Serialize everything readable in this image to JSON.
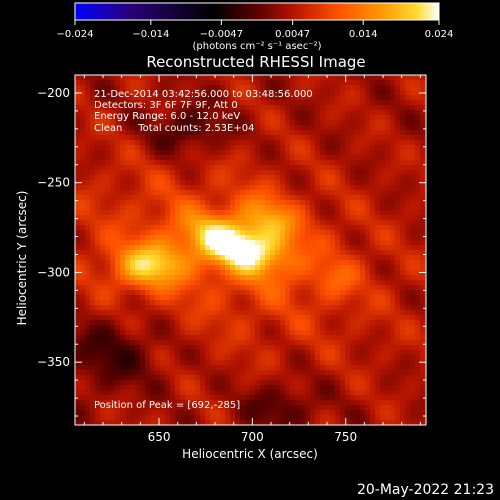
{
  "chart_data": {
    "type": "heatmap",
    "title": "Reconstructed RHESSI Image",
    "xlabel": "Heliocentric X (arcsec)",
    "ylabel": "Heliocentric Y (arcsec)",
    "xlim": [
      605,
      793
    ],
    "ylim": [
      -385,
      -190
    ],
    "xticks": [
      650,
      700,
      750
    ],
    "yticks": [
      -200,
      -250,
      -300,
      -350
    ],
    "ytick_labels": [
      "−200",
      "−250",
      "−300",
      "−350"
    ],
    "colorbar": {
      "min": -0.024,
      "max": 0.024,
      "ticks": [
        -0.024,
        -0.014,
        -0.0047,
        0.0047,
        0.014,
        0.024
      ],
      "tick_labels": [
        "−0.024",
        "−0.014",
        "−0.0047",
        "0.0047",
        "0.014",
        "0.024"
      ],
      "label": "(photons cm⁻² s⁻¹ asec⁻²)",
      "colormap": [
        "#0000ff",
        "#2a007a",
        "#000000",
        "#5a0000",
        "#b41400",
        "#ff5000",
        "#ff9600",
        "#ffdc32",
        "#ffffff"
      ]
    },
    "annotations": [
      "21-Dec-2014 03:42:56.000 to 03:48:56.000",
      "Detectors: 3F 6F 7F 9F, Att 0",
      "Energy Range: 6.0 - 12.0 keV",
      "Clean     Total counts: 2.53E+04"
    ],
    "peak_label": "Position of Peak = [692,-285]",
    "sources": [
      {
        "x": 692,
        "y": -285,
        "value": 0.024
      },
      {
        "x": 645,
        "y": -296,
        "value": 0.018
      },
      {
        "x": 710,
        "y": -270,
        "value": 0.016
      },
      {
        "x": 745,
        "y": -304,
        "value": 0.0075
      }
    ]
  },
  "timestamp": "20-May-2022 21:23"
}
